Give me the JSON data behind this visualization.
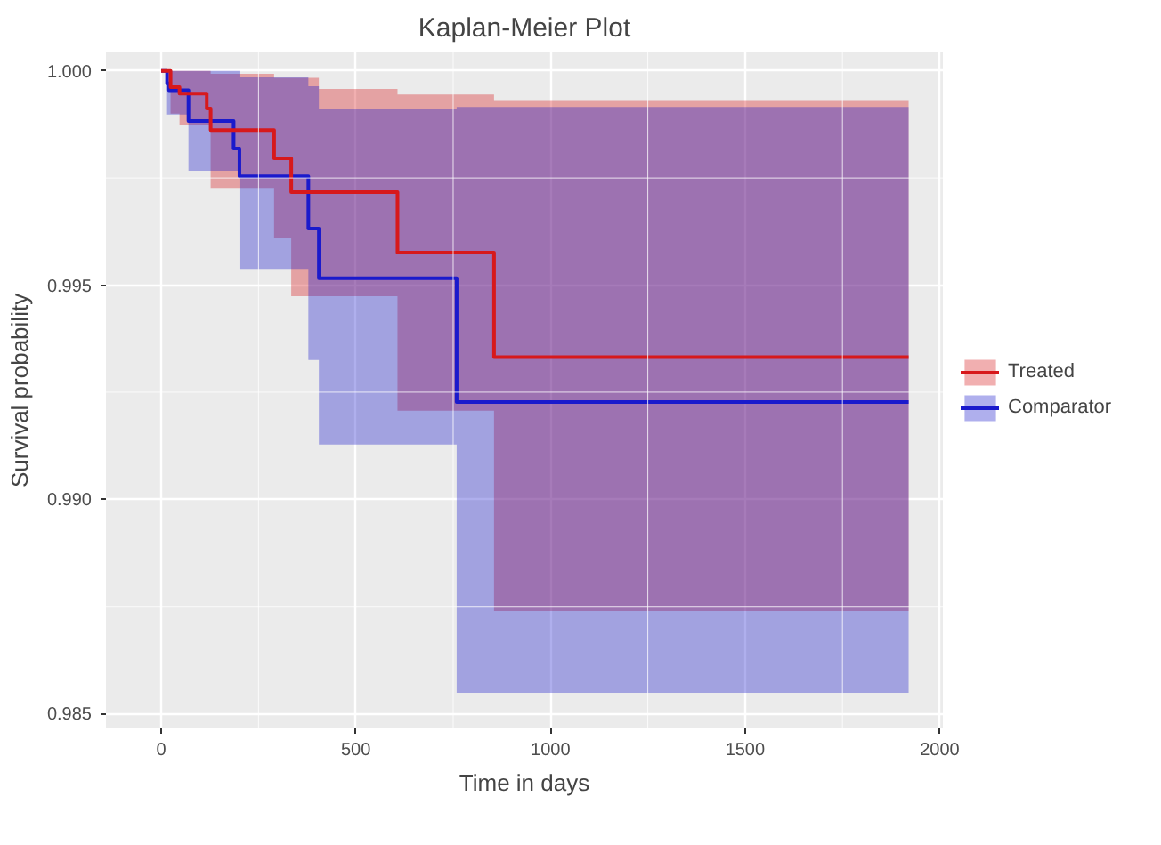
{
  "chart_data": {
    "type": "step",
    "title": "Kaplan-Meier Plot",
    "xlabel": "Time in days",
    "ylabel": "Survival probability",
    "xlim": [
      -142,
      2008
    ],
    "ylim": [
      0.98465,
      1.00043
    ],
    "xticks": [
      0,
      500,
      1000,
      1500,
      2000
    ],
    "yticks": [
      {
        "value": 0.985,
        "label": "0.985"
      },
      {
        "value": 0.99,
        "label": "0.990"
      },
      {
        "value": 0.995,
        "label": "0.995"
      },
      {
        "value": 1,
        "label": "1.000"
      }
    ],
    "grid": true,
    "legend": "right",
    "series": [
      {
        "name": "Treated",
        "color": "#d7191c",
        "x": [
          0,
          24,
          47,
          117,
          127,
          290,
          334,
          405,
          607,
          855,
          1920
        ],
        "values": [
          1,
          0.99962,
          0.99947,
          0.99912,
          0.99862,
          0.99796,
          0.99717,
          0.99717,
          0.99576,
          0.99332,
          0.99332
        ],
        "upper": [
          1,
          1,
          1,
          1,
          0.99993,
          0.99984,
          0.99984,
          0.99958,
          0.99945,
          0.99932,
          0.99932
        ],
        "lower": [
          1,
          0.999,
          0.99875,
          0.99875,
          0.99727,
          0.99609,
          0.99474,
          0.99474,
          0.99207,
          0.98739,
          0.98739
        ]
      },
      {
        "name": "Comparator",
        "color": "#1a1acc",
        "x": [
          0,
          15,
          20,
          70,
          186,
          201,
          378,
          405,
          759,
          1920
        ],
        "values": [
          1,
          0.99971,
          0.99955,
          0.99883,
          0.99819,
          0.99754,
          0.99632,
          0.99516,
          0.99227,
          0.99227
        ],
        "upper": [
          1,
          1,
          1,
          1,
          1,
          0.99985,
          0.99964,
          0.99912,
          0.99916,
          0.99916
        ],
        "lower": [
          1,
          0.99898,
          0.99898,
          0.99767,
          0.99767,
          0.99538,
          0.99325,
          0.99128,
          0.98548,
          0.98548
        ]
      }
    ]
  }
}
